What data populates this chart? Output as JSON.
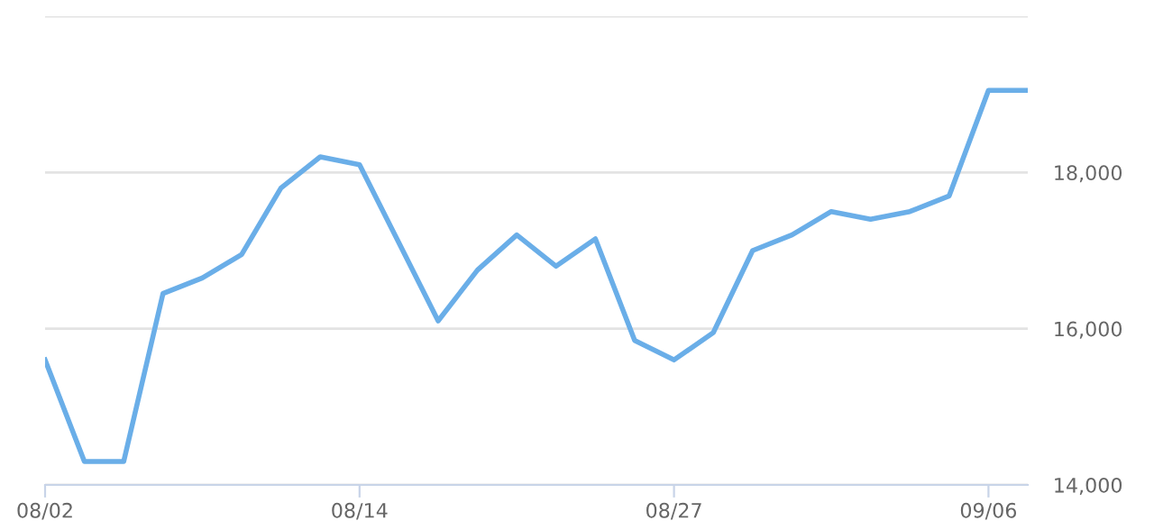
{
  "chart_data": {
    "type": "line",
    "categories": [
      "08/02",
      null,
      null,
      null,
      null,
      null,
      null,
      null,
      "08/14",
      null,
      null,
      null,
      null,
      null,
      null,
      null,
      "08/27",
      null,
      null,
      null,
      null,
      null,
      null,
      null,
      "09/06",
      null
    ],
    "series": [
      {
        "color": "#6aaee8",
        "values": [
          15600,
          14300,
          14300,
          16450,
          16650,
          16950,
          17800,
          18200,
          18100,
          17100,
          16100,
          16750,
          17200,
          16800,
          17150,
          15850,
          15600,
          15950,
          17000,
          17200,
          17500,
          17400,
          17500,
          17700,
          19050,
          19050
        ]
      }
    ],
    "ylim": [
      14000,
      20000
    ],
    "yticks": [
      {
        "value": 14000,
        "label": "14,000"
      },
      {
        "value": 16000,
        "label": "16,000"
      },
      {
        "value": 18000,
        "label": "18,000"
      },
      {
        "value": 20000,
        "label": null
      }
    ],
    "grid": "y",
    "legend": false,
    "marker": "none",
    "line_style": "solid"
  }
}
